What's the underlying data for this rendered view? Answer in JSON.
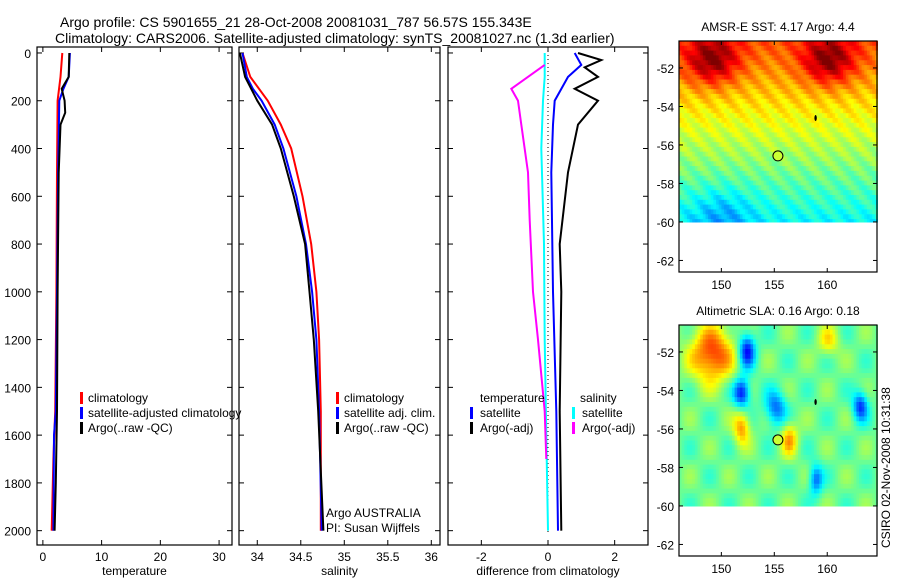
{
  "title": {
    "line1": "Argo profile: CS 5901655_21 28-Oct-2008 20081031_787 56.57S 155.343E",
    "line2": "Climatology: CARS2006. Satellite-adjusted climatology: synTS_20081027.nc (1.3d earlier)"
  },
  "credit": "Argo AUSTRALIA",
  "pi": "PI: Susan Wijffels",
  "stamp": "CSIRO 02-Nov-2008 10:31:38",
  "colors": {
    "climatology": "#ff0000",
    "satellite": "#0000ff",
    "argo": "#000000",
    "sal_satellite": "#00ffff",
    "sal_argo": "#ff00ff"
  },
  "chart_data": [
    {
      "type": "line",
      "xlabel": "temperature",
      "ylabel": "",
      "xlim": [
        -1,
        32.2
      ],
      "ylim": [
        -25,
        2060
      ],
      "yreversed": true,
      "xticks": [
        0,
        10,
        20,
        30
      ],
      "yticks": [
        0,
        200,
        400,
        600,
        800,
        1000,
        1200,
        1400,
        1600,
        1800,
        2000
      ],
      "legend": [
        "climatology",
        "satellite-adjusted climatology",
        "Argo(..raw -QC)"
      ],
      "series": [
        {
          "name": "climatology",
          "color": "#ff0000",
          "depth": [
            0,
            100,
            200,
            500,
            1000,
            1500,
            1700,
            2000
          ],
          "values": [
            3.3,
            3.0,
            2.5,
            2.4,
            2.3,
            2.1,
            1.8,
            1.5
          ]
        },
        {
          "name": "satellite-adjusted climatology",
          "color": "#0000ff",
          "depth": [
            0,
            100,
            150,
            200,
            500,
            1000,
            1500,
            1600,
            2000
          ],
          "values": [
            4.6,
            4.4,
            3.5,
            2.8,
            2.6,
            2.4,
            2.2,
            1.9,
            1.8
          ]
        },
        {
          "name": "Argo(..raw -QC)",
          "color": "#000000",
          "depth": [
            0,
            100,
            150,
            200,
            250,
            300,
            500,
            1000,
            1500,
            1800,
            2000
          ],
          "values": [
            4.5,
            4.4,
            3.2,
            3.7,
            3.8,
            3.0,
            2.7,
            2.5,
            2.4,
            2.2,
            2.0
          ]
        }
      ]
    },
    {
      "type": "line",
      "xlabel": "salinity",
      "xlim": [
        33.79,
        36.1
      ],
      "ylim": [
        -25,
        2060
      ],
      "yreversed": true,
      "xticks": [
        34,
        34.5,
        35,
        35.5,
        36
      ],
      "xticklabels": [
        "34",
        "34.5",
        "35",
        "35.5",
        "36"
      ],
      "legend": [
        "climatology",
        "satellite adj. clim.",
        "Argo(..raw -QC)"
      ],
      "series": [
        {
          "name": "climatology",
          "color": "#ff0000",
          "depth": [
            0,
            100,
            200,
            300,
            400,
            600,
            800,
            1000,
            1200,
            1500,
            2000
          ],
          "values": [
            33.83,
            33.92,
            34.12,
            34.27,
            34.39,
            34.52,
            34.62,
            34.68,
            34.71,
            34.73,
            34.73
          ]
        },
        {
          "name": "satellite adj. clim.",
          "color": "#0000ff",
          "depth": [
            0,
            100,
            150,
            200,
            300,
            400,
            600,
            800,
            1000,
            1200,
            1500,
            2000
          ],
          "values": [
            33.83,
            33.88,
            33.95,
            34.05,
            34.2,
            34.3,
            34.45,
            34.56,
            34.63,
            34.68,
            34.71,
            34.74
          ]
        },
        {
          "name": "Argo(..raw -QC)",
          "color": "#000000",
          "depth": [
            0,
            100,
            200,
            300,
            400,
            600,
            800,
            1000,
            1200,
            1500,
            2000
          ],
          "values": [
            33.8,
            33.86,
            34.0,
            34.17,
            34.27,
            34.42,
            34.55,
            34.6,
            34.65,
            34.7,
            34.76
          ]
        }
      ]
    },
    {
      "type": "line",
      "xlabel": "difference from climatology",
      "xlim": [
        -3,
        3
      ],
      "ylim": [
        -25,
        2060
      ],
      "yreversed": true,
      "xticks": [
        -2,
        0,
        2
      ],
      "legend_titles": [
        "temperature",
        "salinity"
      ],
      "legend": [
        "satellite",
        "Argo(-adj)",
        "satellite",
        "Argo(-adj)"
      ],
      "series": [
        {
          "name": "temperature satellite",
          "color": "#0000ff",
          "depth": [
            0,
            50,
            100,
            200,
            300,
            500,
            1000,
            1500,
            2000
          ],
          "values": [
            0.8,
            1.0,
            0.6,
            0.2,
            0.15,
            0.1,
            0.15,
            0.25,
            0.3
          ]
        },
        {
          "name": "temperature Argo(-adj)",
          "color": "#000000",
          "depth": [
            0,
            30,
            60,
            100,
            150,
            200,
            300,
            500,
            800,
            1000,
            1500,
            2000
          ],
          "values": [
            0.9,
            1.6,
            1.1,
            1.5,
            0.8,
            1.5,
            0.9,
            0.6,
            0.35,
            0.4,
            0.35,
            0.4
          ]
        },
        {
          "name": "salinity satellite",
          "color": "#00ffff",
          "depth": [
            0,
            100,
            200,
            400,
            800,
            1200,
            1600,
            2000
          ],
          "values": [
            -0.1,
            -0.1,
            -0.15,
            -0.2,
            -0.12,
            -0.1,
            -0.05,
            0.0
          ]
        },
        {
          "name": "salinity Argo(-adj)",
          "color": "#ff00ff",
          "depth": [
            50,
            150,
            200,
            300,
            500,
            700,
            1000,
            1200,
            1500,
            1700
          ],
          "values": [
            -0.1,
            -1.1,
            -0.9,
            -0.8,
            -0.6,
            -0.55,
            -0.45,
            -0.3,
            -0.1,
            -0.05
          ]
        }
      ]
    },
    {
      "type": "heatmap",
      "title": "AMSR-E SST: 4.17 Argo: 4.4",
      "xlim": [
        146,
        164.7
      ],
      "ylim": [
        -62.6,
        -50.6
      ],
      "xticks": [
        150,
        155,
        160
      ],
      "yticks": [
        -52,
        -54,
        -56,
        -58,
        -60,
        -62
      ],
      "marker": {
        "lon": 155.343,
        "lat": -56.57
      },
      "data_lat_min": -60
    },
    {
      "type": "heatmap",
      "title": "Altimetric SLA: 0.16 Argo: 0.18",
      "xlim": [
        146,
        164.7
      ],
      "ylim": [
        -62.6,
        -50.6
      ],
      "xticks": [
        150,
        155,
        160
      ],
      "yticks": [
        -52,
        -54,
        -56,
        -58,
        -60,
        -62
      ],
      "marker": {
        "lon": 155.343,
        "lat": -56.57
      },
      "data_lat_min": -60
    }
  ]
}
